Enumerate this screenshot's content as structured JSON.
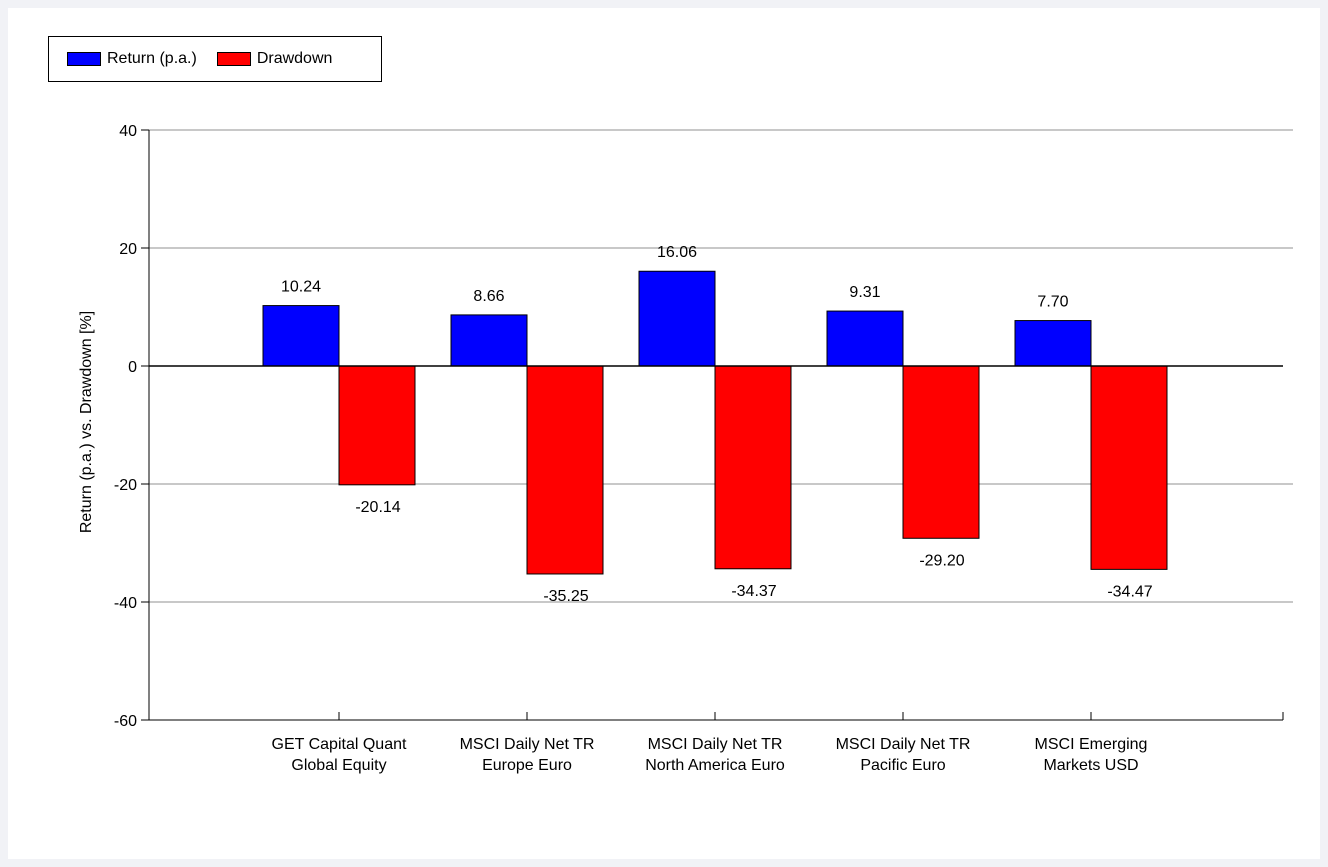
{
  "chart_data": {
    "type": "bar",
    "title": "",
    "xlabel": "",
    "ylabel": "Return (p.a.) vs. Drawdown [%]",
    "ylim": [
      -60,
      40
    ],
    "yticks": [
      -60,
      -40,
      -20,
      0,
      20,
      40
    ],
    "ytick_labels": [
      "-60",
      "-40",
      "-20",
      "0",
      "20",
      "40"
    ],
    "grid": true,
    "legend_position": "top-left",
    "categories": [
      [
        "GET Capital Quant",
        "Global Equity"
      ],
      [
        "MSCI Daily Net TR",
        "Europe Euro"
      ],
      [
        "MSCI Daily Net TR",
        "North America Euro"
      ],
      [
        "MSCI Daily Net TR",
        "Pacific Euro"
      ],
      [
        "MSCI Emerging",
        "Markets USD"
      ]
    ],
    "series": [
      {
        "name": "Return (p.a.)",
        "color": "#0000ff",
        "values": [
          10.24,
          8.66,
          16.06,
          9.31,
          7.7
        ],
        "labels": [
          "10.24",
          "8.66",
          "16.06",
          "9.31",
          "7.70"
        ]
      },
      {
        "name": "Drawdown",
        "color": "#ff0000",
        "values": [
          -20.14,
          -35.25,
          -34.37,
          -29.2,
          -34.47
        ],
        "labels": [
          "-20.14",
          "-35.25",
          "-34.37",
          "-29.20",
          "-34.47"
        ]
      }
    ]
  }
}
